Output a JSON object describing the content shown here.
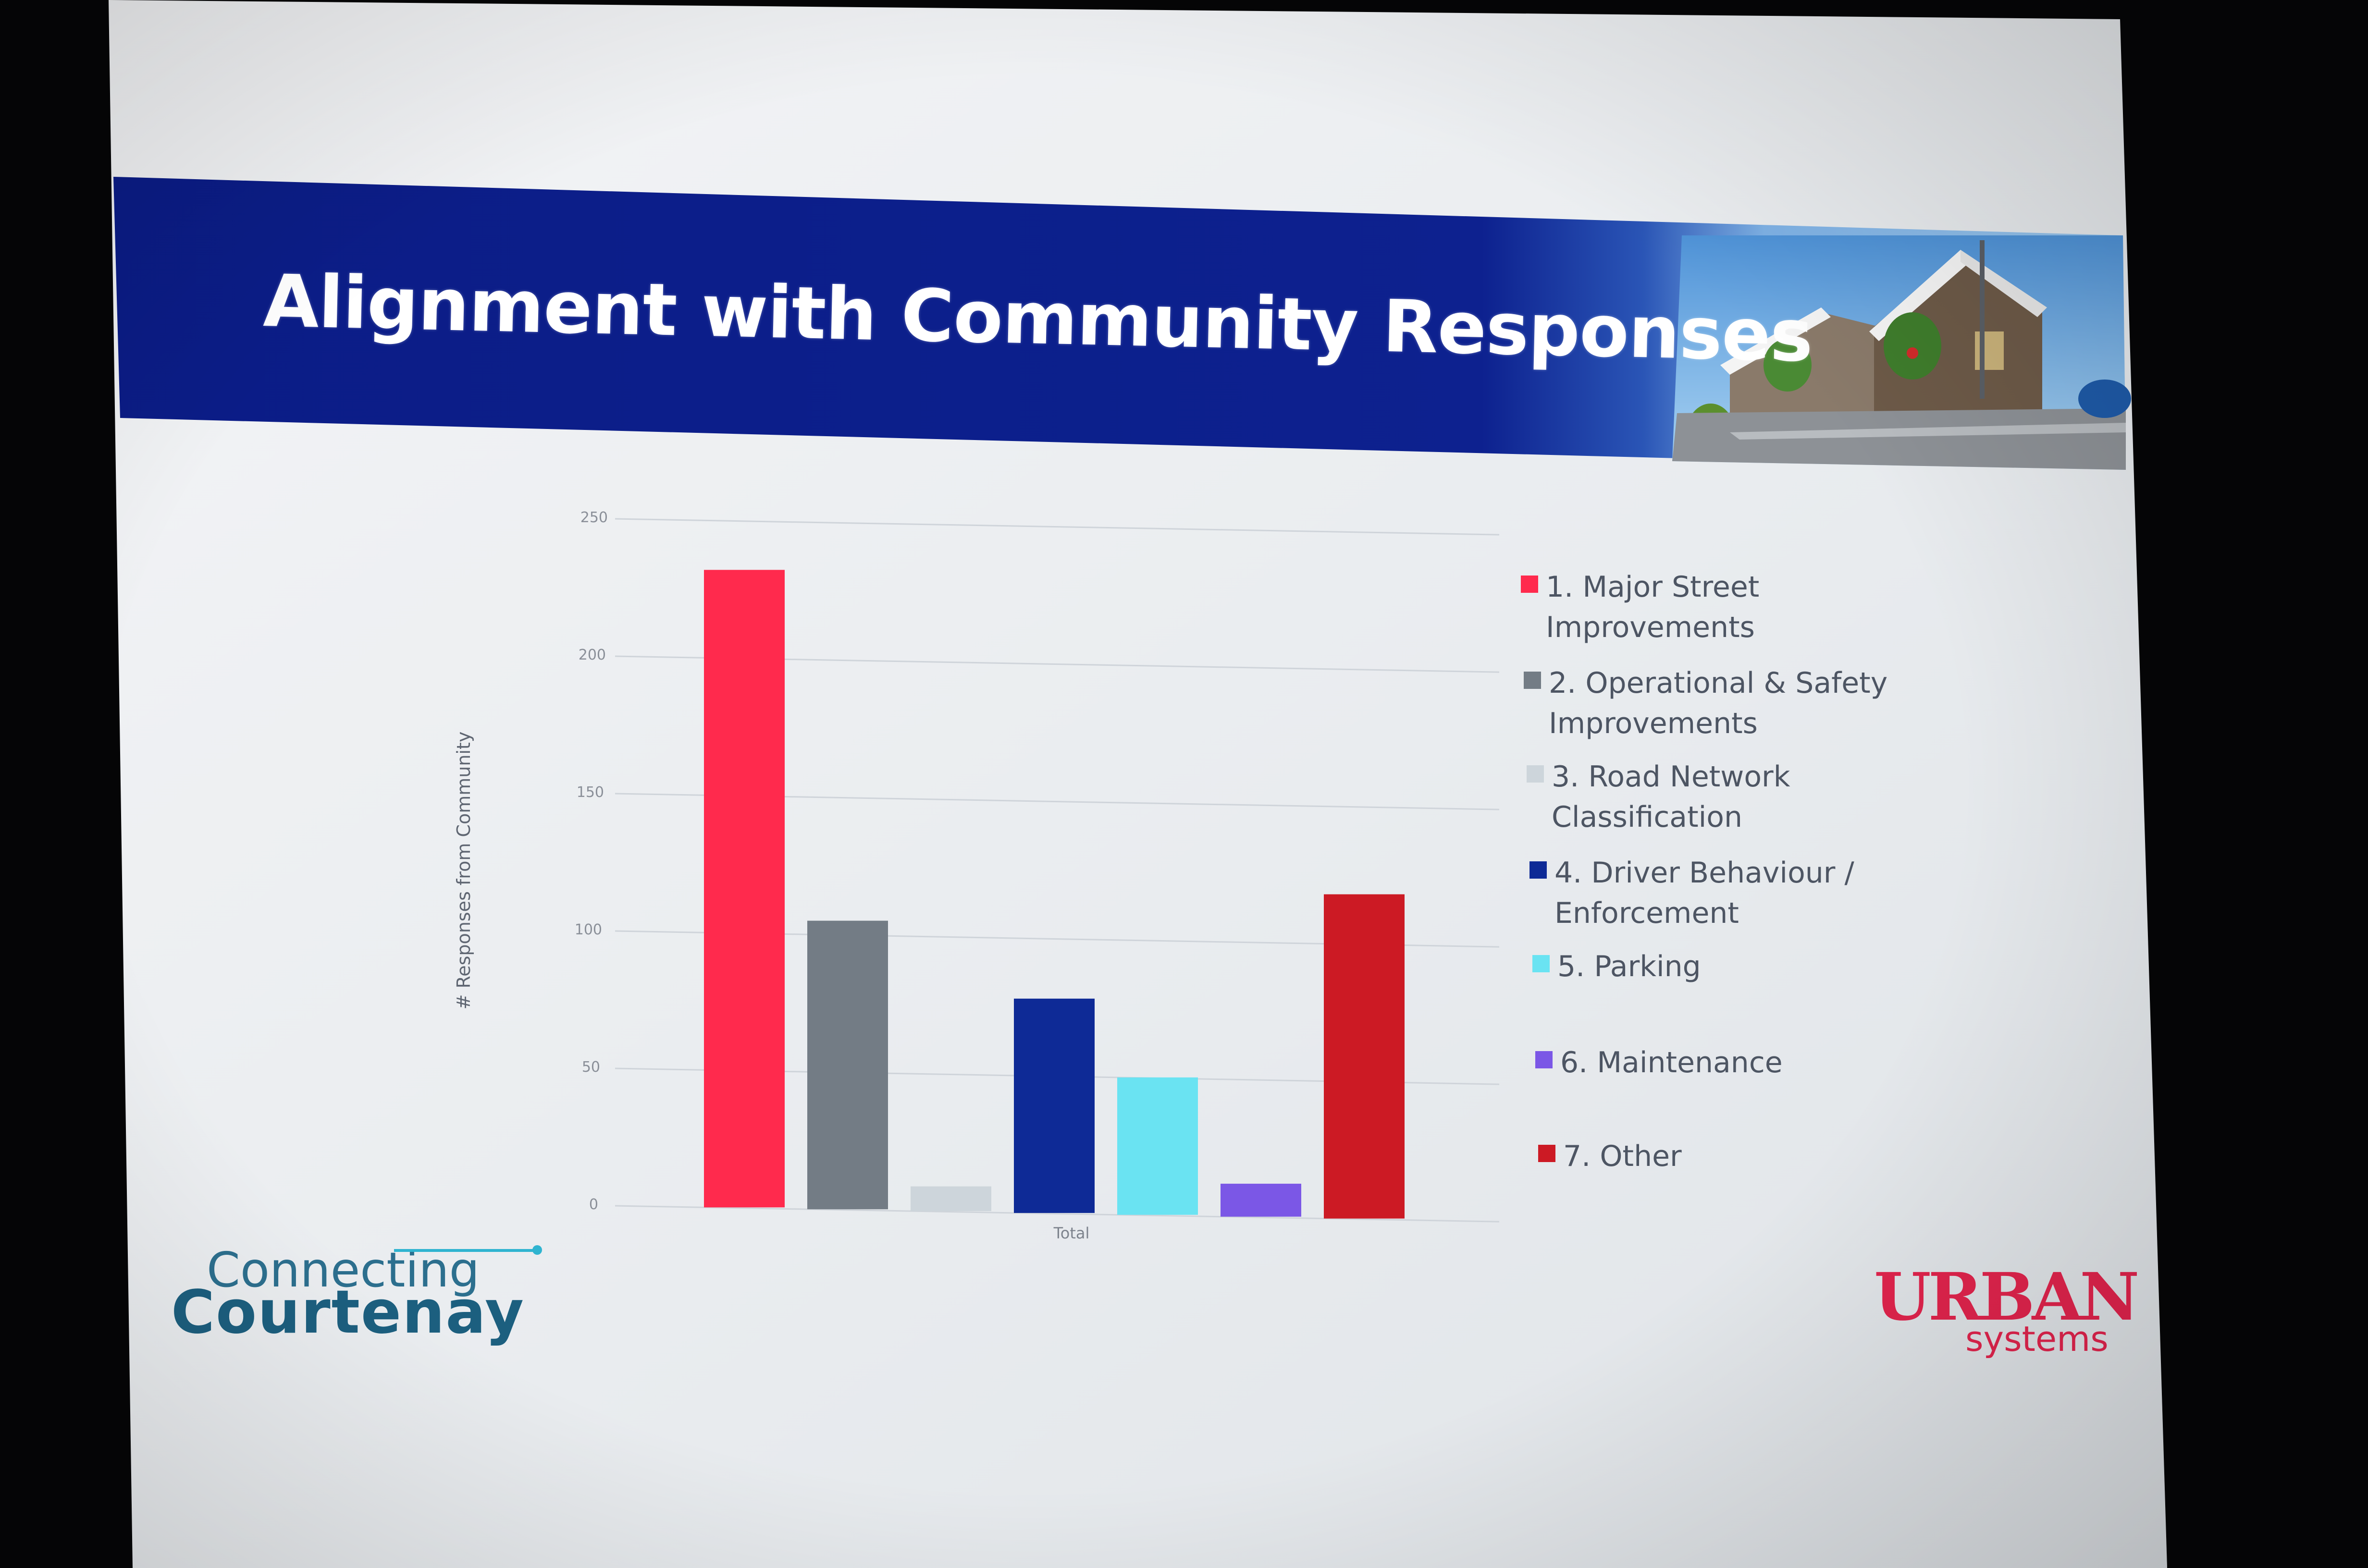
{
  "slide": {
    "title": "Alignment with Community Responses",
    "brand_color": "#0d1f8a"
  },
  "logos": {
    "left_line1": "Connecting",
    "left_line2": "Courtenay",
    "right_word": "URBAN",
    "right_sub": "systems"
  },
  "chart_data": {
    "type": "bar",
    "categories": [
      "Total"
    ],
    "ylabel": "# Responses from Community",
    "xlabel": "",
    "ylim": [
      0,
      250
    ],
    "yticks": [
      "0",
      "50",
      "100",
      "150",
      "200",
      "250"
    ],
    "grid": true,
    "legend_position": "right",
    "series": [
      {
        "name": "1. Major Street Improvements",
        "values": [
          232
        ],
        "color": "#ff2a4d"
      },
      {
        "name": "2. Operational & Safety Improvements",
        "values": [
          105
        ],
        "color": "#737c85"
      },
      {
        "name": "3. Road Network Classification",
        "values": [
          9
        ],
        "color": "#cdd5db"
      },
      {
        "name": "4. Driver Behaviour / Enforcement",
        "values": [
          78
        ],
        "color": "#0e2a96"
      },
      {
        "name": "5. Parking",
        "values": [
          50
        ],
        "color": "#6ae3f2"
      },
      {
        "name": "6. Maintenance",
        "values": [
          12
        ],
        "color": "#7b57e6"
      },
      {
        "name": "7. Other",
        "values": [
          118
        ],
        "color": "#cc1a24"
      }
    ]
  }
}
